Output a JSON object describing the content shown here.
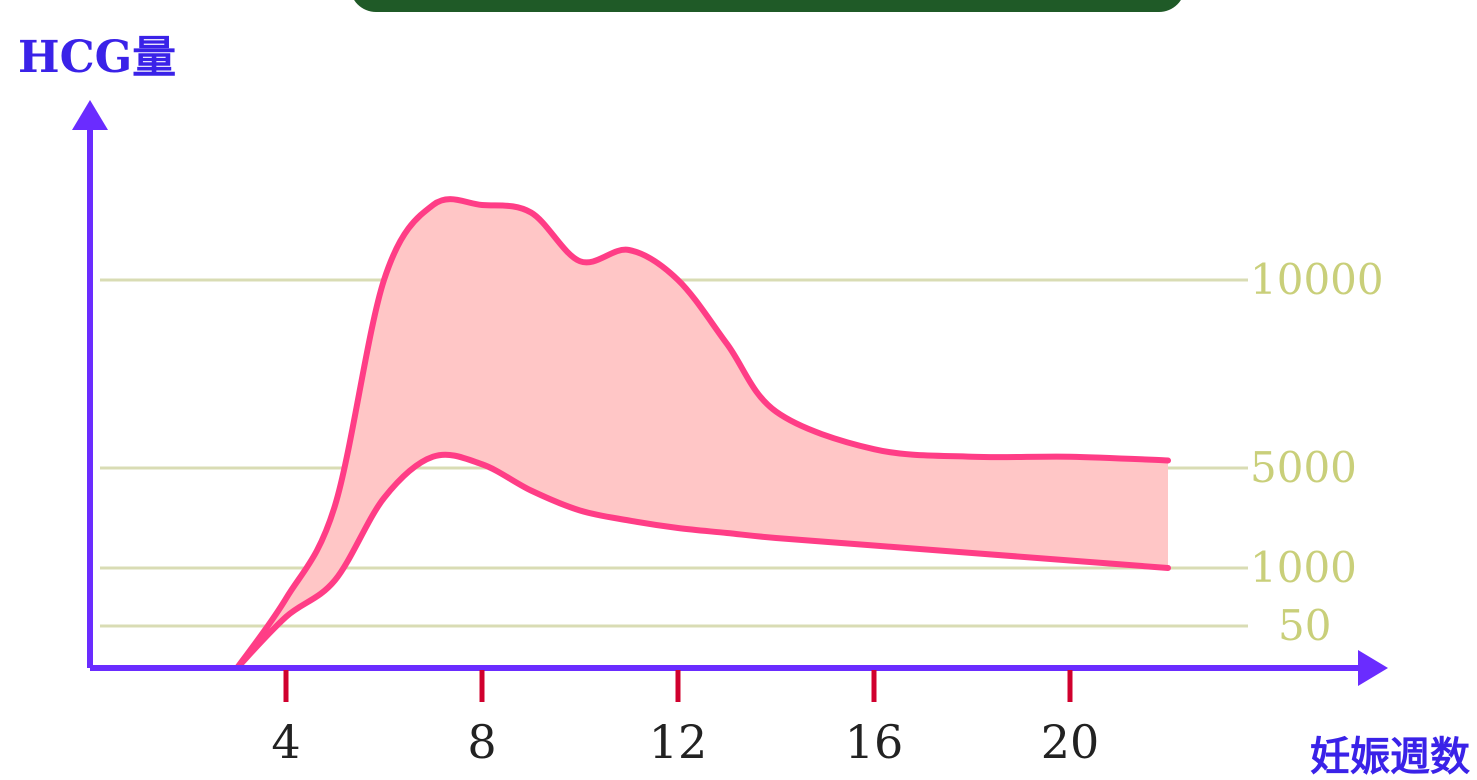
{
  "chart_data": {
    "type": "area",
    "ylabel": "HCG量",
    "xlabel": "妊娠週数",
    "x_ticks": [
      4,
      8,
      12,
      16,
      20
    ],
    "y_ticks": [
      50,
      1000,
      5000,
      10000
    ],
    "xlim": [
      0,
      24
    ],
    "grid": "horizontal",
    "series": [
      {
        "values_x": [
          3.0,
          4.0,
          5.0,
          6.0,
          7.0,
          8.0,
          9.0,
          10.0,
          11.0,
          12.0,
          13.0,
          14.0,
          16.0,
          18.0,
          20.0,
          22.0
        ],
        "values_y": [
          0,
          500,
          3500,
          10000,
          12000,
          12000,
          11800,
          10500,
          10800,
          10000,
          8300,
          6500,
          5500,
          5300,
          5300,
          5200
        ]
      },
      {
        "values_x": [
          3.0,
          4.0,
          5.0,
          6.0,
          7.0,
          8.0,
          9.0,
          10.0,
          11.0,
          12.0,
          13.0,
          14.0,
          16.0,
          18.0,
          20.0,
          22.0
        ],
        "values_y": [
          0,
          200,
          800,
          3800,
          5300,
          5100,
          4100,
          3300,
          2900,
          2600,
          2400,
          2200,
          1900,
          1600,
          1300,
          1000
        ]
      }
    ],
    "colors": {
      "axis": "#6a2cff",
      "grid": "#d9dcb4",
      "band_fill": "#ffc6c6",
      "band_stroke": "#ff3d86",
      "tick_marks": "#d0002e",
      "ytick_labels": "#c9cf7a",
      "titles": "#3a22e8"
    }
  }
}
